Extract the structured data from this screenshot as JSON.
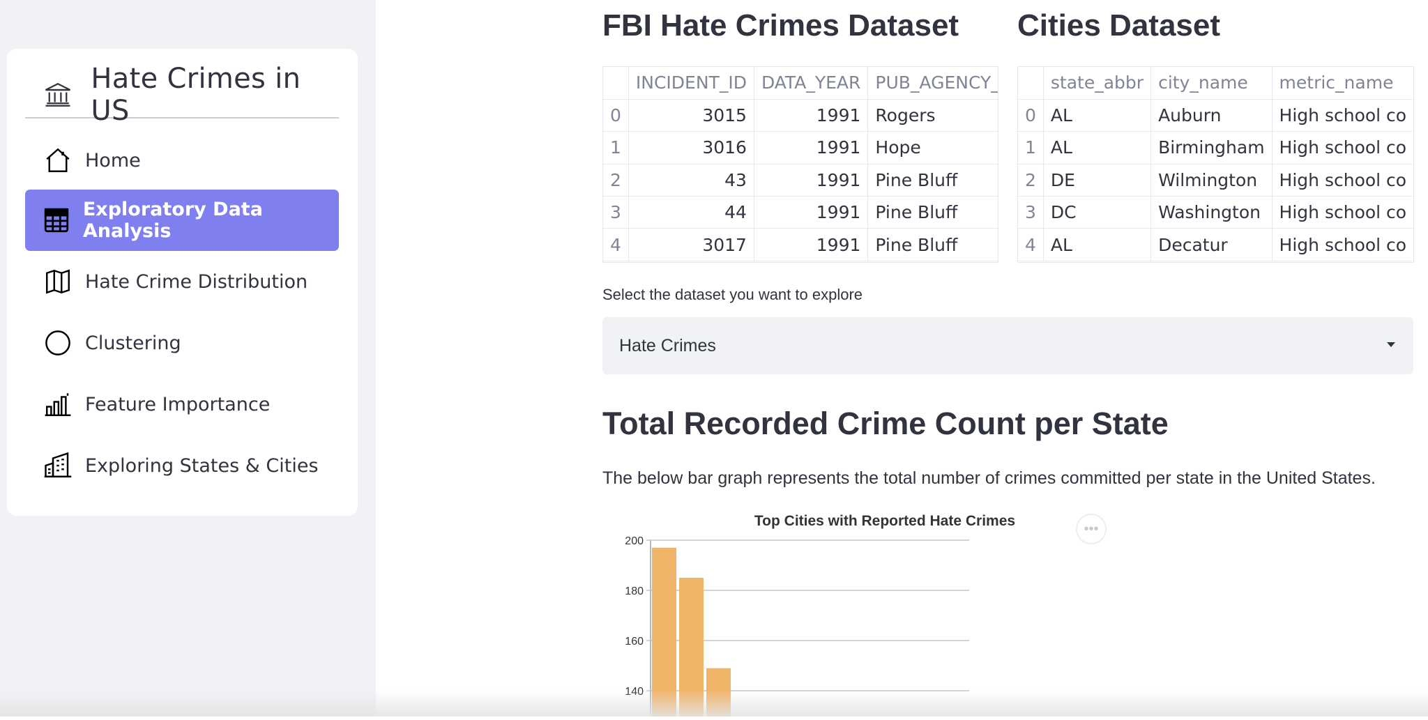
{
  "sidebar": {
    "title": "Hate Crimes in US",
    "items": [
      {
        "label": "Home",
        "icon": "house-icon"
      },
      {
        "label": "Exploratory Data Analysis",
        "icon": "table-icon",
        "active": true
      },
      {
        "label": "Hate Crime Distribution",
        "icon": "map-icon"
      },
      {
        "label": "Clustering",
        "icon": "circle-icon"
      },
      {
        "label": "Feature Importance",
        "icon": "bar-chart-icon"
      },
      {
        "label": "Exploring States & Cities",
        "icon": "buildings-icon"
      }
    ],
    "accent_color": "#7f7ff0"
  },
  "fbi": {
    "title": "FBI Hate Crimes Dataset",
    "columns": [
      "",
      "INCIDENT_ID",
      "DATA_YEAR",
      "PUB_AGENCY_"
    ],
    "rows": [
      [
        "0",
        "3015",
        "1991",
        "Rogers"
      ],
      [
        "1",
        "3016",
        "1991",
        "Hope"
      ],
      [
        "2",
        "43",
        "1991",
        "Pine Bluff"
      ],
      [
        "3",
        "44",
        "1991",
        "Pine Bluff"
      ],
      [
        "4",
        "3017",
        "1991",
        "Pine Bluff"
      ]
    ]
  },
  "cities": {
    "title": "Cities Dataset",
    "columns": [
      "",
      "state_abbr",
      "city_name",
      "metric_name"
    ],
    "rows": [
      [
        "0",
        "AL",
        "Auburn",
        "High school co"
      ],
      [
        "1",
        "AL",
        "Birmingham",
        "High school co"
      ],
      [
        "2",
        "DE",
        "Wilmington",
        "High school co"
      ],
      [
        "3",
        "DC",
        "Washington",
        "High school co"
      ],
      [
        "4",
        "AL",
        "Decatur",
        "High school co"
      ]
    ]
  },
  "selector": {
    "label": "Select the dataset you want to explore",
    "value": "Hate Crimes"
  },
  "section": {
    "title": "Total Recorded Crime Count per State",
    "text": "The below bar graph represents the total number of crimes committed per state in the United States."
  },
  "chart_data": {
    "type": "bar",
    "title": "Top Cities with Reported Hate Crimes",
    "xlabel": "",
    "ylabel": "",
    "ylim": [
      130,
      200
    ],
    "yticks": [
      140,
      160,
      180,
      200
    ],
    "values": [
      197,
      185,
      149
    ],
    "grid": true,
    "bar_color": "#f0b469"
  }
}
